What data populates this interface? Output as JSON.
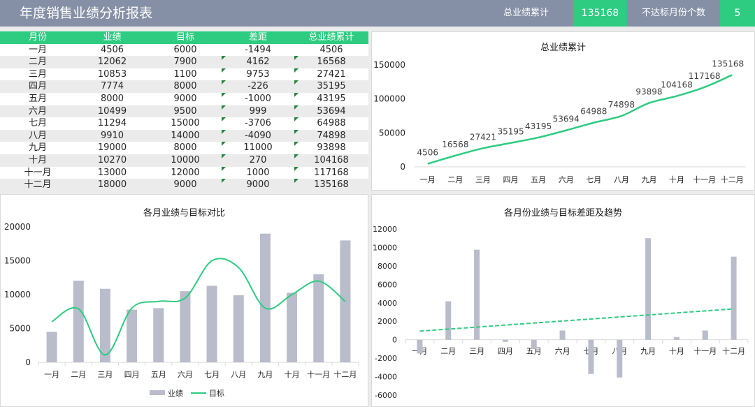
{
  "header": {
    "title": "年度销售业绩分析报表",
    "kpi1_label": "总业绩累计",
    "kpi1_value": "135168",
    "kpi2_label": "不达标月份个数",
    "kpi2_value": "5"
  },
  "colors": {
    "green": "#2ecc80",
    "gray_bar": "#b8bccb",
    "header": "#8590a6",
    "flag": "#1f8a3a"
  },
  "table": {
    "headers": [
      "月份",
      "业绩",
      "目标",
      "差距",
      "总业绩累计"
    ],
    "rows": [
      [
        "一月",
        "4506",
        "6000",
        "-1494",
        "4506"
      ],
      [
        "二月",
        "12062",
        "7900",
        "4162",
        "16568"
      ],
      [
        "三月",
        "10853",
        "1100",
        "9753",
        "27421"
      ],
      [
        "四月",
        "7774",
        "8000",
        "-226",
        "35195"
      ],
      [
        "五月",
        "8000",
        "9000",
        "-1000",
        "43195"
      ],
      [
        "六月",
        "10499",
        "9500",
        "999",
        "53694"
      ],
      [
        "七月",
        "11294",
        "15000",
        "-3706",
        "64988"
      ],
      [
        "八月",
        "9910",
        "14000",
        "-4090",
        "74898"
      ],
      [
        "九月",
        "19000",
        "8000",
        "11000",
        "93898"
      ],
      [
        "十月",
        "10270",
        "10000",
        "270",
        "104168"
      ],
      [
        "十一月",
        "13000",
        "12000",
        "1000",
        "117168"
      ],
      [
        "十二月",
        "18000",
        "9000",
        "9000",
        "135168"
      ]
    ]
  },
  "chart_data": [
    {
      "id": "cumulative",
      "type": "line",
      "title": "总业绩累计",
      "categories": [
        "一月",
        "二月",
        "三月",
        "四月",
        "五月",
        "六月",
        "七月",
        "八月",
        "九月",
        "十月",
        "十一月",
        "十二月"
      ],
      "values": [
        4506,
        16568,
        27421,
        35195,
        43195,
        53694,
        64988,
        74898,
        93898,
        104168,
        117168,
        135168
      ],
      "yticks": [
        0,
        50000,
        100000,
        150000
      ],
      "ylim": [
        0,
        150000
      ],
      "data_labels": true,
      "grid": false,
      "color": "#2ecc80"
    },
    {
      "id": "compare",
      "type": "bar",
      "title": "各月业绩与目标对比",
      "categories": [
        "一月",
        "二月",
        "三月",
        "四月",
        "五月",
        "六月",
        "七月",
        "八月",
        "九月",
        "十月",
        "十一月",
        "十二月"
      ],
      "series": [
        {
          "name": "业绩",
          "type": "bar",
          "values": [
            4506,
            12062,
            10853,
            7774,
            8000,
            10499,
            11294,
            9910,
            19000,
            10270,
            13000,
            18000
          ],
          "color": "#b8bccb"
        },
        {
          "name": "目标",
          "type": "line",
          "values": [
            6000,
            7900,
            1100,
            8000,
            9000,
            9500,
            15000,
            14000,
            8000,
            10000,
            12000,
            9000
          ],
          "color": "#2ecc80"
        }
      ],
      "yticks": [
        0,
        5000,
        10000,
        15000,
        20000
      ],
      "ylim": [
        0,
        20000
      ],
      "legend": "bottom",
      "grid": false
    },
    {
      "id": "gap",
      "type": "bar",
      "title": "各月份业绩与目标差距及趋势",
      "categories": [
        "一月",
        "二月",
        "三月",
        "四月",
        "五月",
        "六月",
        "七月",
        "八月",
        "九月",
        "十月",
        "十一月",
        "十二月"
      ],
      "values": [
        -1494,
        4162,
        9753,
        -226,
        -1000,
        999,
        -3706,
        -4090,
        11000,
        270,
        1000,
        9000
      ],
      "trendline": "linear",
      "yticks": [
        -6000,
        -4000,
        -2000,
        0,
        2000,
        4000,
        6000,
        8000,
        10000,
        12000
      ],
      "ylim": [
        -6000,
        12000
      ],
      "grid": false,
      "bar_color": "#b8bccb",
      "trend_color": "#2ecc80"
    }
  ]
}
